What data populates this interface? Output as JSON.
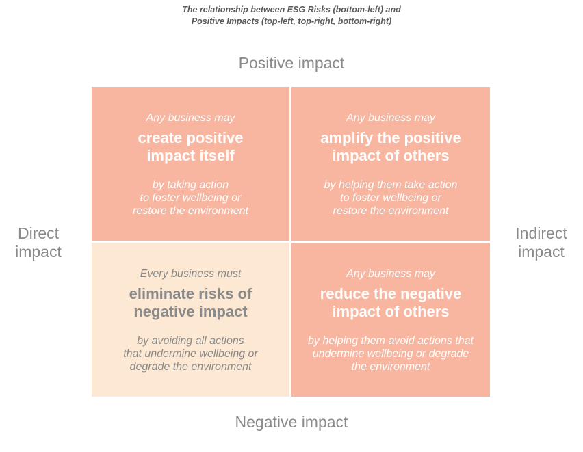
{
  "title": {
    "line1": "The relationship between ESG Risks (bottom-left) and",
    "line2": "Positive Impacts (top-left, top-right, bottom-right)"
  },
  "axes": {
    "top": "Positive impact",
    "bottom": "Negative impact",
    "left": [
      "Direct",
      "impact"
    ],
    "right": [
      "Indirect",
      "impact"
    ]
  },
  "quadrants": {
    "top_left": {
      "intro": "Any business may",
      "heading": [
        "create positive",
        "impact itself"
      ],
      "detail": [
        "by taking action",
        "to foster wellbeing or",
        "restore the environment"
      ],
      "color": "#f8b6a0"
    },
    "top_right": {
      "intro": "Any business may",
      "heading": [
        "amplify the positive",
        "impact of others"
      ],
      "detail": [
        "by helping them take action",
        "to foster wellbeing or",
        "restore the environment"
      ],
      "color": "#f8b6a0"
    },
    "bottom_left": {
      "intro": "Every business must",
      "heading": [
        "eliminate risks of",
        "negative impact"
      ],
      "detail": [
        "by avoiding all actions",
        "that undermine wellbeing or",
        "degrade the environment"
      ],
      "color": "#fde9d3"
    },
    "bottom_right": {
      "intro": "Any business may",
      "heading": [
        "reduce the negative",
        "impact of others"
      ],
      "detail": [
        "by helping them avoid actions that",
        "undermine wellbeing or degrade",
        "the environment"
      ],
      "color": "#f8b6a0"
    }
  }
}
